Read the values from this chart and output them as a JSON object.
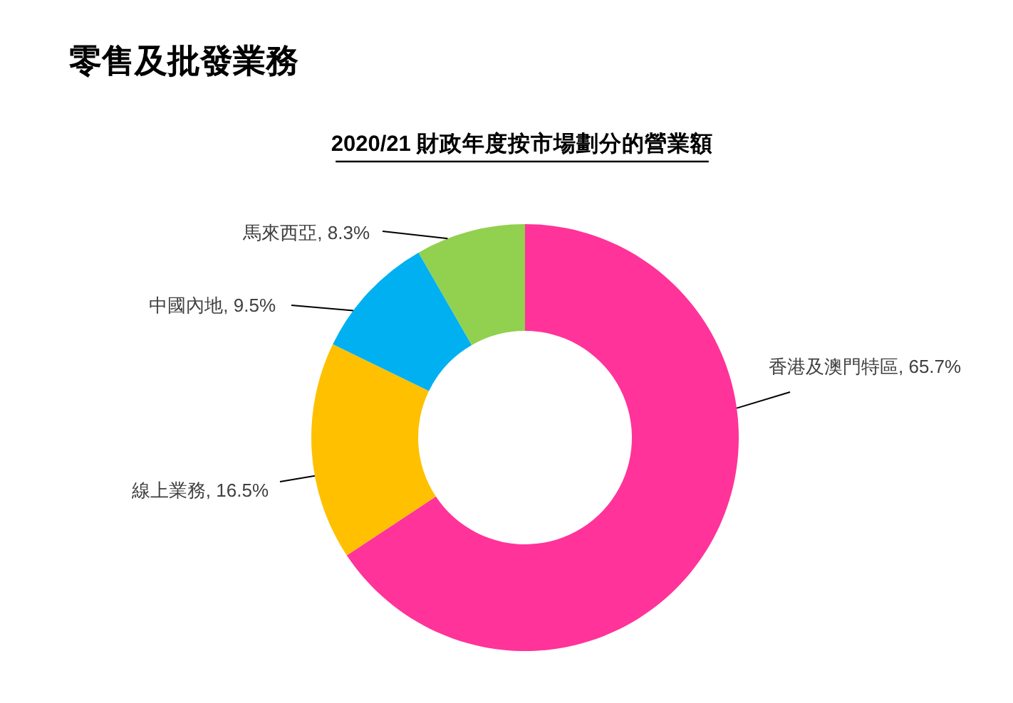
{
  "chart_data": {
    "type": "donut",
    "title": "零售及批發業務",
    "subtitle": "2020/21 財政年度按市場劃分的營業額",
    "categories": [
      "香港及澳門特區",
      "線上業務",
      "中國內地",
      "馬來西亞"
    ],
    "values": [
      65.7,
      16.5,
      9.5,
      8.3
    ],
    "colors": [
      "#ff3399",
      "#ffc000",
      "#00b0f0",
      "#92d050"
    ],
    "value_labels": [
      "65.7%",
      "16.5%",
      "9.5%",
      "8.3%"
    ]
  }
}
